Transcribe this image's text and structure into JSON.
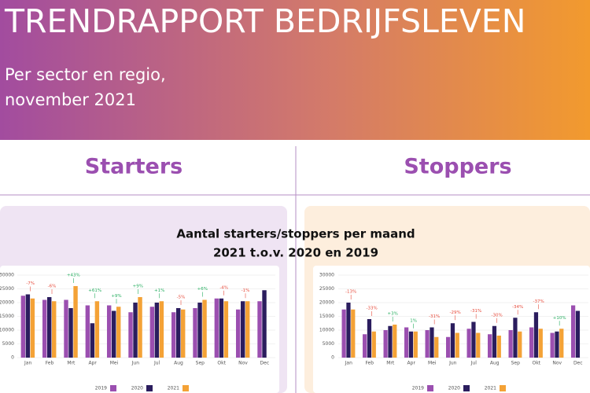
{
  "header": {
    "title": "TRENDRAPPORT BEDRIJFSLEVEN",
    "subtitle_lines": [
      "Per sector en regio,",
      "november 2021"
    ]
  },
  "section_title_lines": [
    "Aantal starters/stoppers per maand",
    "2021 t.o.v. 2020 en 2019"
  ],
  "chart_data": [
    {
      "type": "bar",
      "title": "Starters",
      "categories": [
        "Jan",
        "Feb",
        "Mrt",
        "Apr",
        "Mei",
        "Jun",
        "Jul",
        "Aug",
        "Sep",
        "Okt",
        "Nov",
        "Dec"
      ],
      "series": [
        {
          "name": "2019",
          "color": "#9b4fb0",
          "values": [
            22500,
            21000,
            21000,
            19000,
            19000,
            16500,
            18500,
            16500,
            18000,
            21500,
            17500,
            20500
          ]
        },
        {
          "name": "2020",
          "color": "#2b1d5e",
          "values": [
            23000,
            22000,
            18000,
            12500,
            17000,
            20000,
            20000,
            18000,
            20000,
            21500,
            20500,
            24500
          ]
        },
        {
          "name": "2021",
          "color": "#f4a236",
          "values": [
            21500,
            20500,
            26000,
            20500,
            18500,
            22000,
            20500,
            17500,
            21000,
            20500,
            20500,
            null
          ]
        }
      ],
      "annotations": [
        {
          "text": "-7%",
          "color": "#e74c3c"
        },
        {
          "text": "-6%",
          "color": "#e74c3c"
        },
        {
          "text": "+43%",
          "color": "#27ae60"
        },
        {
          "text": "+61%",
          "color": "#27ae60"
        },
        {
          "text": "+9%",
          "color": "#27ae60"
        },
        {
          "text": "+9%",
          "color": "#27ae60"
        },
        {
          "text": "+1%",
          "color": "#27ae60"
        },
        {
          "text": "-5%",
          "color": "#e74c3c"
        },
        {
          "text": "+6%",
          "color": "#27ae60"
        },
        {
          "text": "-4%",
          "color": "#e74c3c"
        },
        {
          "text": "-1%",
          "color": "#e74c3c"
        }
      ],
      "ylim": [
        0,
        30000
      ],
      "yticks": [
        0,
        5000,
        10000,
        15000,
        20000,
        25000,
        30000
      ],
      "grid": true,
      "panel_color": "#efe4f3"
    },
    {
      "type": "bar",
      "title": "Stoppers",
      "categories": [
        "Jan",
        "Feb",
        "Mrt",
        "Apr",
        "Mei",
        "Jun",
        "Jul",
        "Aug",
        "Sep",
        "Okt",
        "Nov",
        "Dec"
      ],
      "series": [
        {
          "name": "2019",
          "color": "#9b4fb0",
          "values": [
            17500,
            8500,
            10000,
            11000,
            10000,
            7500,
            10500,
            8500,
            10000,
            11000,
            9000,
            19000
          ]
        },
        {
          "name": "2020",
          "color": "#2b1d5e",
          "values": [
            20000,
            14000,
            11500,
            9500,
            11000,
            12500,
            13000,
            11500,
            14500,
            16500,
            9500,
            17000
          ]
        },
        {
          "name": "2021",
          "color": "#f4a236",
          "values": [
            17500,
            9500,
            12000,
            9500,
            7500,
            9000,
            9000,
            8000,
            9500,
            10500,
            10500,
            null
          ]
        }
      ],
      "annotations": [
        {
          "text": "-13%",
          "color": "#e74c3c"
        },
        {
          "text": "-33%",
          "color": "#e74c3c"
        },
        {
          "text": "+3%",
          "color": "#27ae60"
        },
        {
          "text": "1%",
          "color": "#27ae60"
        },
        {
          "text": "-31%",
          "color": "#e74c3c"
        },
        {
          "text": "-29%",
          "color": "#e74c3c"
        },
        {
          "text": "-31%",
          "color": "#e74c3c"
        },
        {
          "text": "-30%",
          "color": "#e74c3c"
        },
        {
          "text": "-34%",
          "color": "#e74c3c"
        },
        {
          "text": "-37%",
          "color": "#e74c3c"
        },
        {
          "text": "+10%",
          "color": "#27ae60"
        }
      ],
      "ylim": [
        0,
        30000
      ],
      "yticks": [
        0,
        5000,
        10000,
        15000,
        20000,
        25000,
        30000
      ],
      "grid": true,
      "panel_color": "#fdeedd"
    }
  ]
}
